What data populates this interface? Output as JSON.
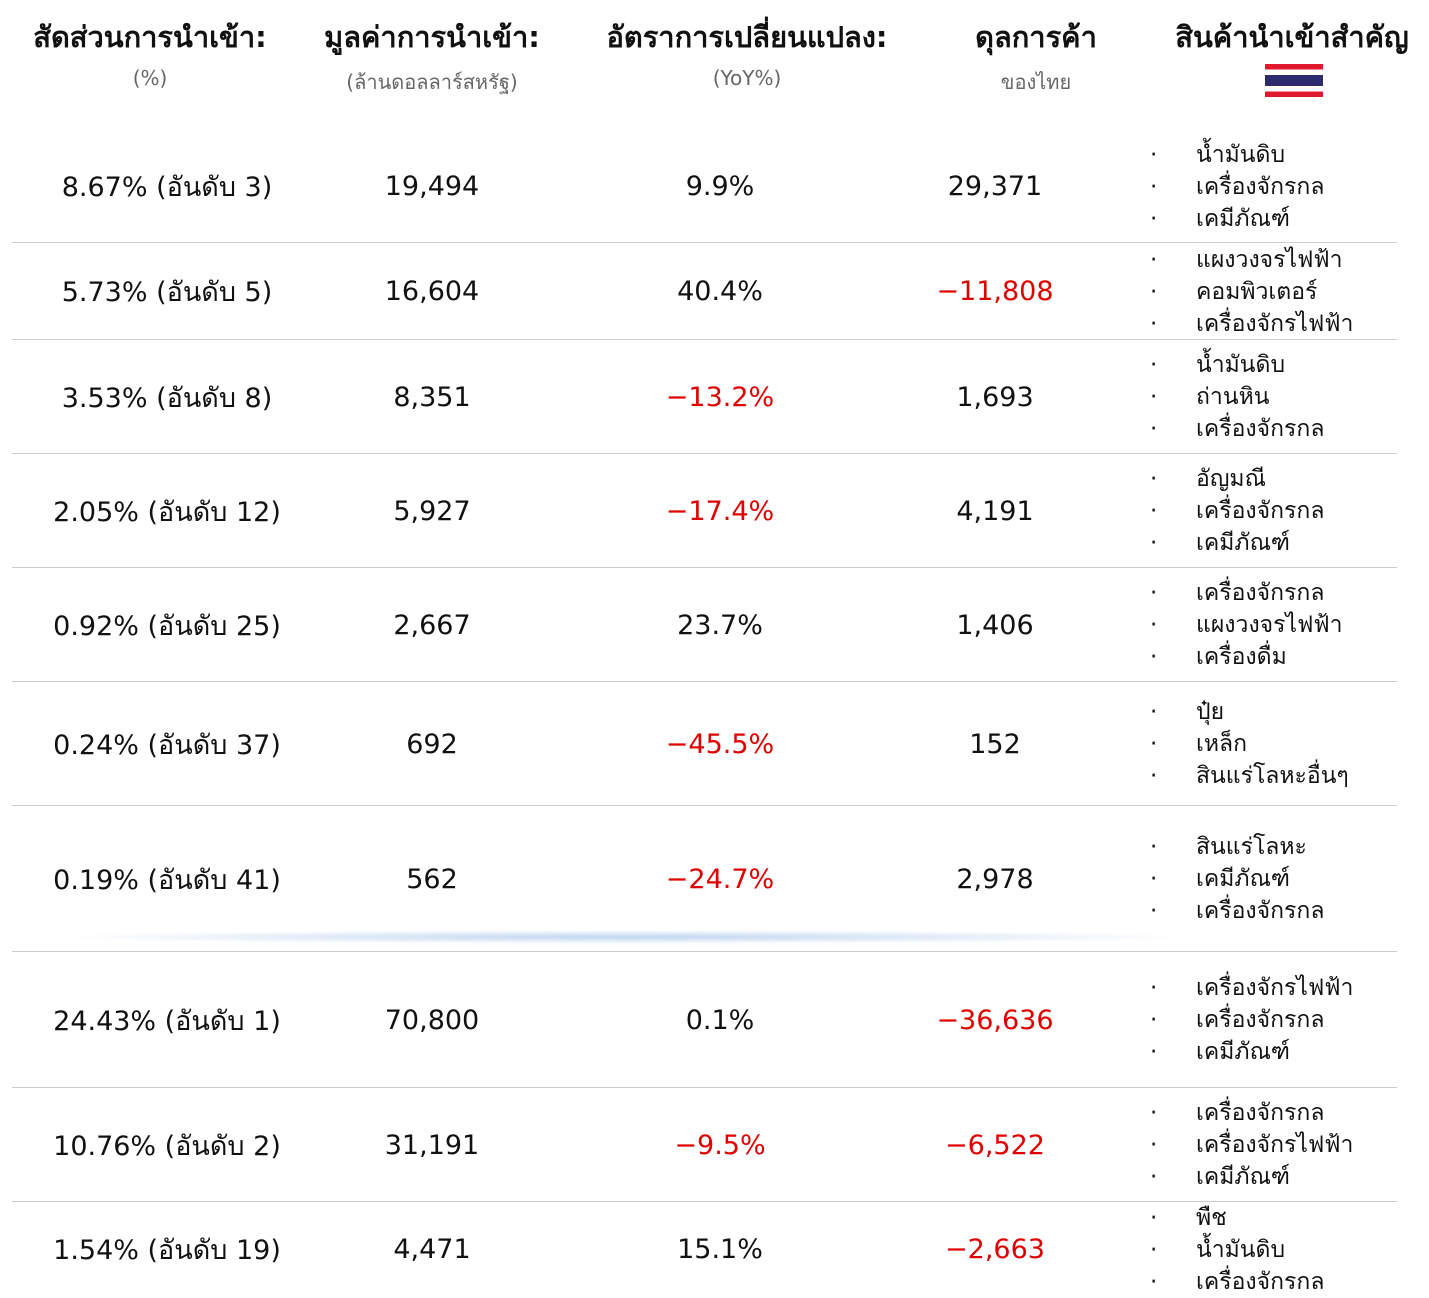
{
  "header": {
    "columns": [
      {
        "title": "สัดส่วนการนำเข้า:",
        "subtitle": "(%)"
      },
      {
        "title": "มูลค่าการนำเข้า:",
        "subtitle": "(ล้านดอลลาร์สหรัฐ)"
      },
      {
        "title": "อัตราการเปลี่ยนแปลง:",
        "subtitle": "(YoY%)"
      },
      {
        "title": "ดุลการค้า",
        "subtitle": "ของไทย"
      },
      {
        "title": "สินค้านำเข้าสำคัญ"
      }
    ]
  },
  "table": {
    "rows": [
      {
        "share": "8.67% (อันดับ 3)",
        "value": "19,494",
        "yoy": "9.9%",
        "balance": "29,371",
        "products": [
          "น้ำมันดิบ",
          "เครื่องจักรกล",
          "เคมีภัณฑ์"
        ]
      },
      {
        "share": "5.73% (อันดับ 5)",
        "value": "16,604",
        "yoy": "40.4%",
        "balance": "−11,808",
        "products": [
          "แผงวงจรไฟฟ้า",
          "คอมพิวเตอร์",
          "เครื่องจักรไฟฟ้า"
        ]
      },
      {
        "share": "3.53% (อันดับ 8)",
        "value": "8,351",
        "yoy": "−13.2%",
        "balance": "1,693",
        "products": [
          "น้ำมันดิบ",
          "ถ่านหิน",
          "เครื่องจักรกล"
        ]
      },
      {
        "share": "2.05% (อันดับ 12)",
        "value": "5,927",
        "yoy": "−17.4%",
        "balance": "4,191",
        "products": [
          "อัญมณี",
          "เครื่องจักรกล",
          "เคมีภัณฑ์"
        ]
      },
      {
        "share": "0.92% (อันดับ 25)",
        "value": "2,667",
        "yoy": "23.7%",
        "balance": "1,406",
        "products": [
          "เครื่องจักรกล",
          "แผงวงจรไฟฟ้า",
          "เครื่องดื่ม"
        ]
      },
      {
        "share": "0.24% (อันดับ 37)",
        "value": "692",
        "yoy": "−45.5%",
        "balance": "152",
        "products": [
          "ปุ๋ย",
          "เหล็ก",
          "สินแร่โลหะอื่นๆ"
        ]
      },
      {
        "share": "0.19% (อันดับ 41)",
        "value": "562",
        "yoy": "−24.7%",
        "balance": "2,978",
        "products": [
          "สินแร่โลหะ",
          "เคมีภัณฑ์",
          "เครื่องจักรกล"
        ]
      },
      {
        "share": "24.43% (อันดับ 1)",
        "value": "70,800",
        "yoy": "0.1%",
        "balance": "−36,636",
        "products": [
          "เครื่องจักรไฟฟ้า",
          "เครื่องจักรกล",
          "เคมีภัณฑ์"
        ]
      },
      {
        "share": "10.76% (อันดับ 2)",
        "value": "31,191",
        "yoy": "−9.5%",
        "balance": "−6,522",
        "products": [
          "เครื่องจักรกล",
          "เครื่องจักรไฟฟ้า",
          "เคมีภัณฑ์"
        ]
      },
      {
        "share": "1.54% (อันดับ 19)",
        "value": "4,471",
        "yoy": "15.1%",
        "balance": "−2,663",
        "products": [
          "พืช",
          "น้ำมันดิบ",
          "เครื่องจักรกล"
        ]
      }
    ]
  }
}
